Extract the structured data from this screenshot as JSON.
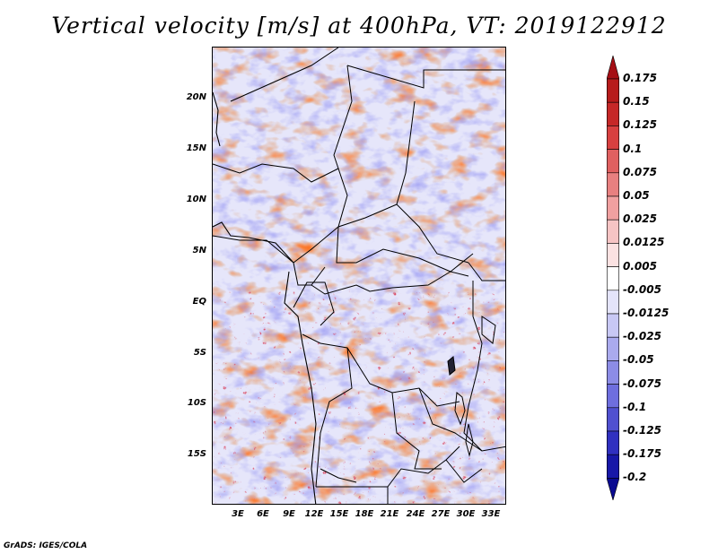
{
  "title": "Vertical velocity [m/s] at 400hPa, VT: 2019122912",
  "credit": "GrADS: IGES/COLA",
  "lat_labels": [
    "20N",
    "15N",
    "10N",
    "5N",
    "EQ",
    "5S",
    "10S",
    "15S"
  ],
  "lon_labels": [
    "3E",
    "6E",
    "9E",
    "12E",
    "15E",
    "18E",
    "21E",
    "24E",
    "27E",
    "30E",
    "33E"
  ],
  "colorbar": {
    "labels": [
      "0.175",
      "0.15",
      "0.125",
      "0.1",
      "0.075",
      "0.05",
      "0.025",
      "0.0125",
      "0.005",
      "-0.005",
      "-0.0125",
      "-0.025",
      "-0.05",
      "-0.075",
      "-0.1",
      "-0.125",
      "-0.175",
      "-0.2"
    ],
    "colors": [
      "#a50f15",
      "#b71c1c",
      "#c62828",
      "#d84040",
      "#e06060",
      "#e88080",
      "#f0a0a0",
      "#f6c4c4",
      "#fbe2e2",
      "#ffffff",
      "#e4e4fa",
      "#c8c8f4",
      "#aaaaee",
      "#8c8ce6",
      "#6e6ede",
      "#5050d0",
      "#3030c0",
      "#1818a8",
      "#0a0a90"
    ]
  }
}
